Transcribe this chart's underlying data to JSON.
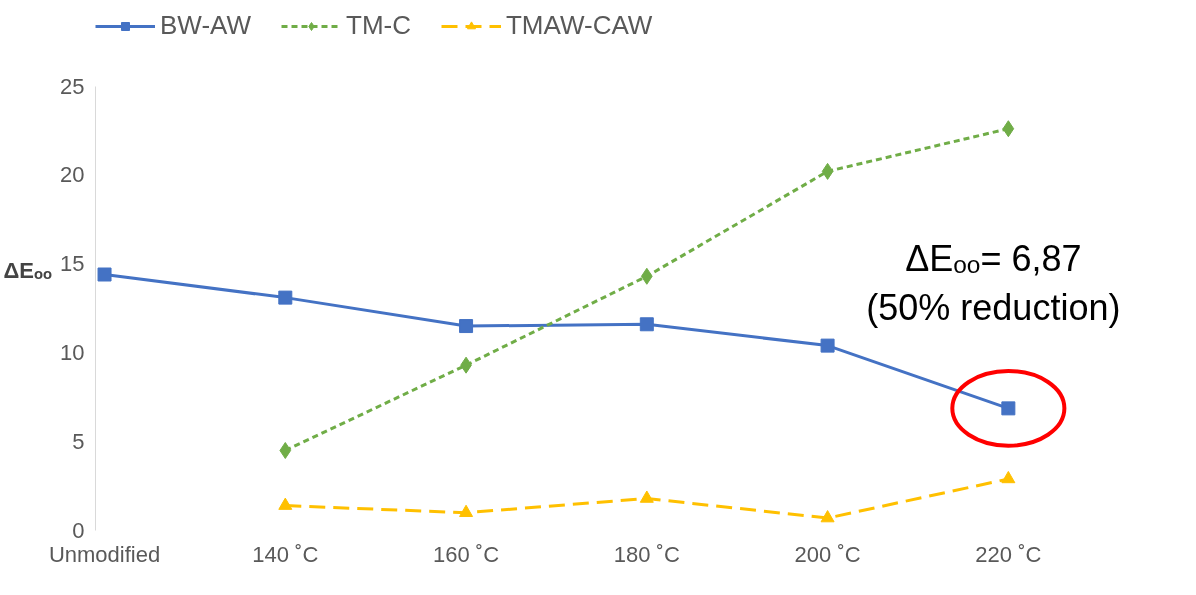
{
  "chart_data": {
    "type": "line",
    "ylabel": "ΔEₒₒ",
    "categories": [
      "Unmodified",
      "140 ˚C",
      "160 ˚C",
      "180 ˚C",
      "200 ˚C",
      "220 ˚C"
    ],
    "series": [
      {
        "name": "BW-AW",
        "color": "#4472c4",
        "marker": "square",
        "line_style": "solid",
        "values": [
          14.4,
          13.1,
          11.5,
          11.6,
          10.4,
          6.87
        ]
      },
      {
        "name": "TM-C",
        "color": "#70ad47",
        "marker": "diamond",
        "line_style": "dotted",
        "values": [
          null,
          4.5,
          9.3,
          14.3,
          20.2,
          22.6
        ]
      },
      {
        "name": "TMAW-CAW",
        "color": "#ffc000",
        "marker": "triangle",
        "line_style": "dashed",
        "values": [
          null,
          1.4,
          1.0,
          1.8,
          0.7,
          2.9
        ]
      }
    ],
    "ylim": [
      0,
      25
    ],
    "yticks": [
      0,
      5,
      10,
      15,
      20,
      25
    ],
    "grid": false,
    "legend": "top",
    "annotations": [
      {
        "text": "ΔEₒₒ= 6,87\n(50% reduction)",
        "x": "220 ˚C",
        "y": 6.87
      }
    ]
  }
}
